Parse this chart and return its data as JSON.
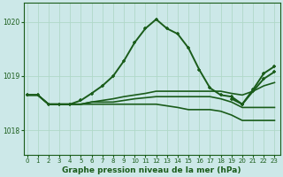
{
  "title": "Graphe pression niveau de la mer (hPa)",
  "bg_color": "#cce8e8",
  "grid_color": "#b0d8c8",
  "line_color": "#1a5c1a",
  "x_ticks": [
    0,
    1,
    2,
    3,
    4,
    5,
    6,
    7,
    8,
    9,
    10,
    11,
    12,
    13,
    14,
    15,
    16,
    17,
    18,
    19,
    20,
    21,
    22,
    23
  ],
  "y_ticks": [
    1018,
    1019,
    1020
  ],
  "ylim": [
    1017.55,
    1020.35
  ],
  "xlim": [
    -0.3,
    23.5
  ],
  "lines": [
    {
      "x": [
        0,
        1,
        2,
        3,
        4,
        5,
        6,
        7,
        8,
        9,
        10,
        11,
        12,
        13,
        14,
        15,
        16,
        17,
        18,
        19,
        20,
        21,
        22,
        23
      ],
      "y": [
        1018.65,
        1018.65,
        1018.48,
        1018.48,
        1018.48,
        1018.55,
        1018.68,
        1018.82,
        1019.0,
        1019.28,
        1019.62,
        1019.88,
        1020.05,
        1019.88,
        1019.78,
        1019.52,
        1019.12,
        1018.78,
        1018.65,
        1018.62,
        1018.48,
        1018.75,
        1019.05,
        1019.18
      ],
      "has_markers": true,
      "linewidth": 1.4,
      "zorder": 5
    },
    {
      "x": [
        0,
        1,
        2,
        3,
        4,
        5,
        6,
        7,
        8,
        9,
        10,
        11,
        12,
        13,
        14,
        15,
        16,
        17,
        18,
        19,
        20,
        21,
        22,
        23
      ],
      "y": [
        1018.65,
        1018.65,
        1018.48,
        1018.48,
        1018.48,
        1018.48,
        1018.52,
        1018.55,
        1018.58,
        1018.62,
        1018.65,
        1018.68,
        1018.72,
        1018.72,
        1018.72,
        1018.72,
        1018.72,
        1018.72,
        1018.72,
        1018.68,
        1018.65,
        1018.72,
        1018.82,
        1018.88
      ],
      "has_markers": false,
      "linewidth": 1.2,
      "zorder": 3
    },
    {
      "x": [
        0,
        1,
        2,
        3,
        4,
        5,
        6,
        7,
        8,
        9,
        10,
        11,
        12,
        13,
        14,
        15,
        16,
        17,
        18,
        19,
        20,
        21,
        22,
        23
      ],
      "y": [
        1018.65,
        1018.65,
        1018.48,
        1018.48,
        1018.48,
        1018.48,
        1018.52,
        1018.52,
        1018.52,
        1018.55,
        1018.58,
        1018.6,
        1018.62,
        1018.62,
        1018.62,
        1018.62,
        1018.62,
        1018.62,
        1018.58,
        1018.52,
        1018.42,
        1018.42,
        1018.42,
        1018.42
      ],
      "has_markers": false,
      "linewidth": 1.2,
      "zorder": 3
    },
    {
      "x": [
        0,
        1,
        2,
        3,
        4,
        5,
        6,
        7,
        8,
        9,
        10,
        11,
        12,
        13,
        14,
        15,
        16,
        17,
        18,
        19,
        20,
        21,
        22,
        23
      ],
      "y": [
        1018.65,
        1018.65,
        1018.48,
        1018.48,
        1018.48,
        1018.48,
        1018.48,
        1018.48,
        1018.48,
        1018.48,
        1018.48,
        1018.48,
        1018.48,
        1018.45,
        1018.42,
        1018.38,
        1018.38,
        1018.38,
        1018.35,
        1018.28,
        1018.18,
        1018.18,
        1018.18,
        1018.18
      ],
      "has_markers": false,
      "linewidth": 1.2,
      "zorder": 3
    },
    {
      "x": [
        19,
        20,
        21,
        22,
        23
      ],
      "y": [
        1018.58,
        1018.48,
        1018.72,
        1018.95,
        1019.08
      ],
      "has_markers": true,
      "linewidth": 1.4,
      "zorder": 4
    }
  ]
}
